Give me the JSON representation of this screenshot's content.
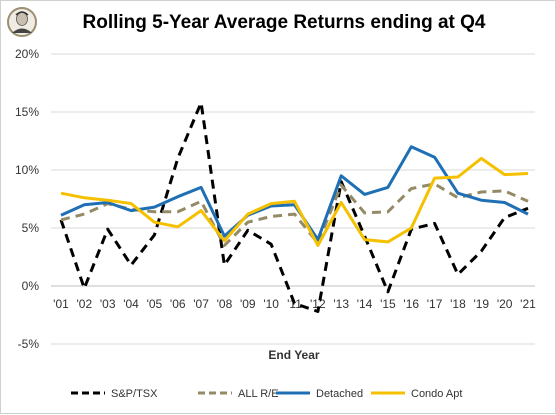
{
  "chart_data": {
    "type": "line",
    "title": "Rolling 5-Year Average Returns ending at Q4",
    "xlabel": "End Year",
    "ylabel": "",
    "ylim": [
      -0.05,
      0.2
    ],
    "yticks": [
      "-5%",
      "0%",
      "5%",
      "10%",
      "15%",
      "20%"
    ],
    "ytick_values": [
      -0.05,
      0,
      0.05,
      0.1,
      0.15,
      0.2
    ],
    "grid": true,
    "legend_position": "bottom",
    "categories": [
      "'01",
      "'02",
      "'03",
      "'04",
      "'05",
      "'06",
      "'07",
      "'08",
      "'09",
      "'10",
      "'11",
      "'12",
      "'13",
      "'14",
      "'15",
      "'16",
      "'17",
      "'18",
      "'19",
      "'20",
      "'21"
    ],
    "x": [
      2001,
      2001.75,
      2002,
      2002.5,
      2003,
      2003.75,
      2004,
      2004.6,
      2005,
      2005.5,
      2006,
      2006.75,
      2007,
      2007.5,
      2008,
      2008.6,
      2009,
      2009.6,
      2010,
      2010.6,
      2011,
      2011.6,
      2012,
      2012.6,
      2013,
      2013.6,
      2014,
      2014.6,
      2015,
      2015.6,
      2016,
      2016.6,
      2017,
      2017.6,
      2018,
      2018.6,
      2019,
      2019.6,
      2020,
      2020.6,
      2021
    ],
    "series": [
      {
        "name": "S&P/TSX",
        "color": "#000000",
        "dash": "dash",
        "points": [
          [
            2001,
            0.057
          ],
          [
            2002,
            -0.002
          ],
          [
            2003,
            0.049
          ],
          [
            2004,
            0.018
          ],
          [
            2005,
            0.044
          ],
          [
            2006,
            0.11
          ],
          [
            2007,
            0.158
          ],
          [
            2008,
            0.018
          ],
          [
            2009,
            0.048
          ],
          [
            2010,
            0.036
          ],
          [
            2011,
            -0.015
          ],
          [
            2012,
            -0.022
          ],
          [
            2013,
            0.09
          ],
          [
            2014,
            0.043
          ],
          [
            2015,
            -0.005
          ],
          [
            2016,
            0.049
          ],
          [
            2017,
            0.054
          ],
          [
            2018,
            0.01
          ],
          [
            2019,
            0.03
          ],
          [
            2020,
            0.059
          ],
          [
            2021,
            0.067
          ]
        ]
      },
      {
        "name": "ALL R/E",
        "color": "#948a64",
        "dash": "dash",
        "points": [
          [
            2001,
            0.057
          ],
          [
            2002,
            0.062
          ],
          [
            2003,
            0.071
          ],
          [
            2004,
            0.066
          ],
          [
            2005,
            0.064
          ],
          [
            2006,
            0.064
          ],
          [
            2007,
            0.073
          ],
          [
            2008,
            0.035
          ],
          [
            2009,
            0.055
          ],
          [
            2010,
            0.06
          ],
          [
            2011,
            0.062
          ],
          [
            2012,
            0.037
          ],
          [
            2013,
            0.087
          ],
          [
            2014,
            0.063
          ],
          [
            2015,
            0.064
          ],
          [
            2016,
            0.084
          ],
          [
            2017,
            0.088
          ],
          [
            2018,
            0.076
          ],
          [
            2019,
            0.081
          ],
          [
            2020,
            0.082
          ],
          [
            2021,
            0.073
          ]
        ]
      },
      {
        "name": "Detached",
        "color": "#1f6fb5",
        "dash": "solid",
        "points": [
          [
            2001,
            0.061
          ],
          [
            2002,
            0.07
          ],
          [
            2003,
            0.072
          ],
          [
            2004,
            0.065
          ],
          [
            2005,
            0.068
          ],
          [
            2006,
            0.077
          ],
          [
            2007,
            0.085
          ],
          [
            2008,
            0.043
          ],
          [
            2009,
            0.061
          ],
          [
            2010,
            0.069
          ],
          [
            2011,
            0.07
          ],
          [
            2012,
            0.04
          ],
          [
            2013,
            0.095
          ],
          [
            2014,
            0.079
          ],
          [
            2015,
            0.085
          ],
          [
            2016,
            0.12
          ],
          [
            2017,
            0.111
          ],
          [
            2018,
            0.08
          ],
          [
            2019,
            0.074
          ],
          [
            2020,
            0.072
          ],
          [
            2021,
            0.062
          ]
        ]
      },
      {
        "name": "Condo Apt",
        "color": "#f5c000",
        "dash": "solid",
        "points": [
          [
            2001,
            0.08
          ],
          [
            2002,
            0.076
          ],
          [
            2003,
            0.074
          ],
          [
            2004,
            0.071
          ],
          [
            2005,
            0.055
          ],
          [
            2006,
            0.051
          ],
          [
            2007,
            0.065
          ],
          [
            2008,
            0.039
          ],
          [
            2009,
            0.062
          ],
          [
            2010,
            0.071
          ],
          [
            2011,
            0.073
          ],
          [
            2012,
            0.035
          ],
          [
            2013,
            0.072
          ],
          [
            2014,
            0.04
          ],
          [
            2015,
            0.038
          ],
          [
            2016,
            0.05
          ],
          [
            2017,
            0.093
          ],
          [
            2018,
            0.094
          ],
          [
            2019,
            0.11
          ],
          [
            2020,
            0.096
          ],
          [
            2021,
            0.097
          ]
        ]
      }
    ]
  }
}
